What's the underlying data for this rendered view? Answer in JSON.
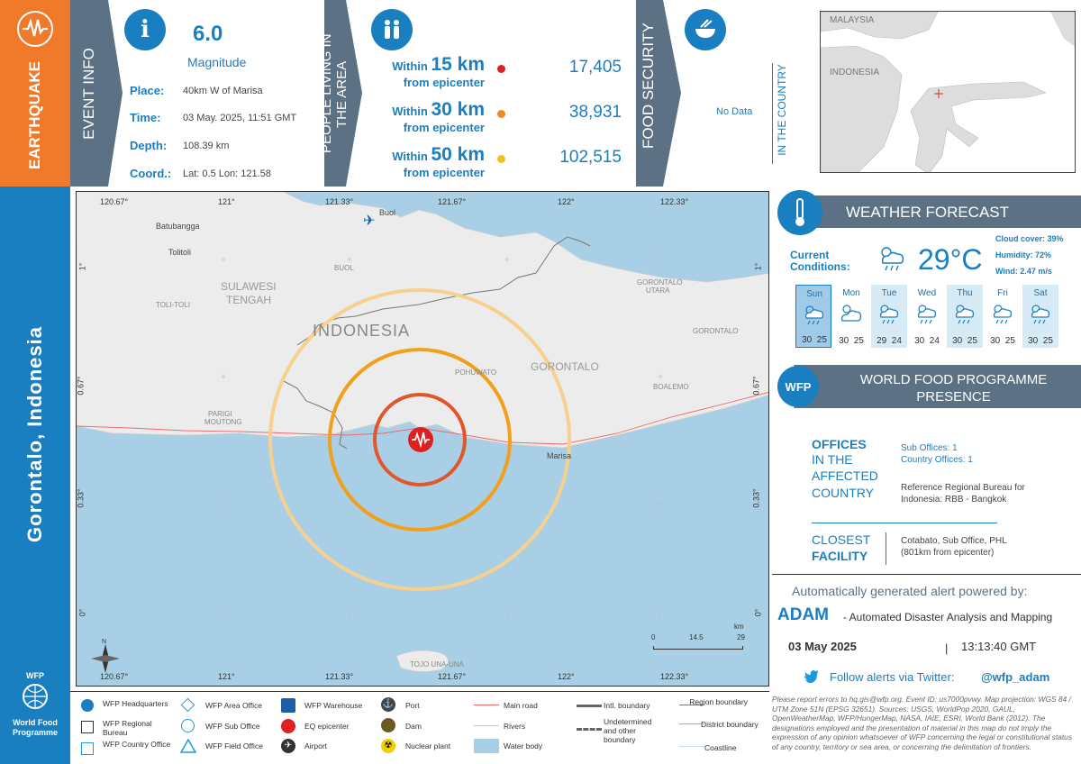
{
  "sidebar": {
    "event_type": "EARTHQUAKE",
    "location": "Gorontalo, Indonesia",
    "org_name_line1": "World Food",
    "org_name_line2": "Programme",
    "org_abbr": "WFP"
  },
  "event_info": {
    "section_title": "EVENT INFO",
    "magnitude": "6.0",
    "magnitude_label": "Magnitude",
    "place_label": "Place:",
    "place": "40km W of Marisa",
    "time_label": "Time:",
    "time": "03 May. 2025, 11:51 GMT",
    "depth_label": "Depth:",
    "depth": "108.39 km",
    "coord_label": "Coord.:",
    "coord": "Lat: 0.5 Lon: 121.58"
  },
  "people": {
    "section_title_line1": "PEOPLE LIVING IN",
    "section_title_line2": "THE AREA",
    "rows": [
      {
        "within": "Within",
        "km": "15 km",
        "from": "from epicenter",
        "value": "17,405",
        "color": "#e02020"
      },
      {
        "within": "Within",
        "km": "30 km",
        "from": "from epicenter",
        "value": "38,931",
        "color": "#f08a24"
      },
      {
        "within": "Within",
        "km": "50 km",
        "from": "from epicenter",
        "value": "102,515",
        "color": "#f0c020"
      }
    ]
  },
  "food_security": {
    "section_title": "FOOD SECURITY",
    "value": "No Data",
    "in_country": "IN THE COUNTRY"
  },
  "inset_map": {
    "label_malaysia": "MALAYSIA",
    "label_indonesia": "INDONESIA"
  },
  "map": {
    "top_ticks": [
      "120.67°",
      "121°",
      "121.33°",
      "121.67°",
      "122°",
      "122.33°"
    ],
    "bottom_ticks": [
      "120.67°",
      "121°",
      "121.33°",
      "121.67°",
      "122°",
      "122.33°"
    ],
    "left_ticks": [
      "1°",
      "0.67°",
      "0.33°",
      "0°"
    ],
    "right_ticks": [
      "1°",
      "0.67°",
      "0.33°",
      "0°"
    ],
    "labels": {
      "batubangga": "Batubangga",
      "tolitoli": "Tolitoli",
      "buol_city": "Buol",
      "buol_region": "BUOL",
      "sulawesi": "SULAWESI",
      "tengah": "TENGAH",
      "toli_toli": "TOLI-TOLI",
      "indonesia": "INDONESIA",
      "gorontalo": "GORONTALO",
      "gorontalo_utara_1": "GORONTALO",
      "gorontalo_utara_2": "UTARA",
      "gorontalo_small": "GORONTALO",
      "pohuwato": "POHUWATO",
      "boalemo": "BOALEMO",
      "parigi_1": "PARIGI",
      "parigi_2": "MOUTONG",
      "marisa": "Marisa",
      "tojo": "TOJO UNA-UNA"
    },
    "scale": {
      "unit": "km",
      "v0": "0",
      "v1": "14.5",
      "v2": "29"
    },
    "north": "N"
  },
  "weather": {
    "title": "WEATHER FORECAST",
    "current_label_1": "Current",
    "current_label_2": "Conditions:",
    "temp": "29°C",
    "cloud": "Cloud cover: 39%",
    "humidity": "Humidity: 72%",
    "wind": "Wind: 2.47 m/s",
    "days": [
      {
        "name": "Sun",
        "hi": "30",
        "lo": "25",
        "icon": "rain-icon"
      },
      {
        "name": "Mon",
        "hi": "30",
        "lo": "25",
        "icon": "cloud-sun-icon"
      },
      {
        "name": "Tue",
        "hi": "29",
        "lo": "24",
        "icon": "rain-icon"
      },
      {
        "name": "Wed",
        "hi": "30",
        "lo": "24",
        "icon": "rain-icon"
      },
      {
        "name": "Thu",
        "hi": "30",
        "lo": "25",
        "icon": "rain-icon"
      },
      {
        "name": "Fri",
        "hi": "30",
        "lo": "25",
        "icon": "rain-icon"
      },
      {
        "name": "Sat",
        "hi": "30",
        "lo": "25",
        "icon": "rain-icon"
      }
    ]
  },
  "wfp_presence": {
    "title_1": "WORLD FOOD PROGRAMME",
    "title_2": "PRESENCE",
    "badge": "WFP",
    "offices_1": "OFFICES",
    "offices_2": "IN THE",
    "offices_3": "AFFECTED",
    "offices_4": "COUNTRY",
    "sub_offices": "Sub Offices: 1",
    "country_offices": "Country Offices: 1",
    "regional_1": "Reference Regional Bureau for",
    "regional_2": "Indonesia: RBB - Bangkok",
    "closest_1": "CLOSEST",
    "closest_2": "FACILITY",
    "closest_val_1": "Cotabato, Sub Office, PHL",
    "closest_val_2": "(801km from epicenter)"
  },
  "adam": {
    "powered": "Automatically generated alert powered by:",
    "name": "ADAM",
    "desc": "- Automated Disaster Analysis and Mapping",
    "date": "03 May 2025",
    "sep": "|",
    "time": "13:13:40 GMT",
    "twitter_text": "Follow alerts via Twitter:",
    "twitter_handle": "@wfp_adam"
  },
  "legend": {
    "hq": "WFP Headquarters",
    "regional": "WFP Regional Bureau",
    "country": "WFP Country Office",
    "area": "WFP Area Office",
    "sub": "WFP Sub Office",
    "field": "WFP Field Office",
    "warehouse": "WFP Warehouse",
    "epicenter": "EQ epicenter",
    "airport": "Airport",
    "port": "Port",
    "dam": "Dam",
    "nuclear": "Nuclear plant",
    "mainroad": "Main road",
    "rivers": "Rivers",
    "water": "Water body",
    "intl": "Intl. boundary",
    "undetermined": "Undetermined and other boundary",
    "region": "Region boundary",
    "district": "District boundary",
    "coastline": "Coastline"
  },
  "disclaimer": "Please report errors to hq.gis@wfp.org. Event ID: us7000pvwy. Map projection: WGS 84 / UTM Zone 51N (EPSG 32651). Sources: USGS, WorldPop 2020, GAUL, OpenWeatherMap, WFP/HungerMap, NASA, IAIE, ESRI, World Bank (2012). The designations employed and the presentation of material in this map do not imply the expression of any opinion whatsoever of WFP concerning the legal or constitutional status of any country, territory or sea area, or concerning the delimitation of frontiers.",
  "colors": {
    "accent": "#1a7fc1",
    "orange": "#f07a2a",
    "panel": "#5c7284",
    "sea": "#a9cfe6"
  }
}
